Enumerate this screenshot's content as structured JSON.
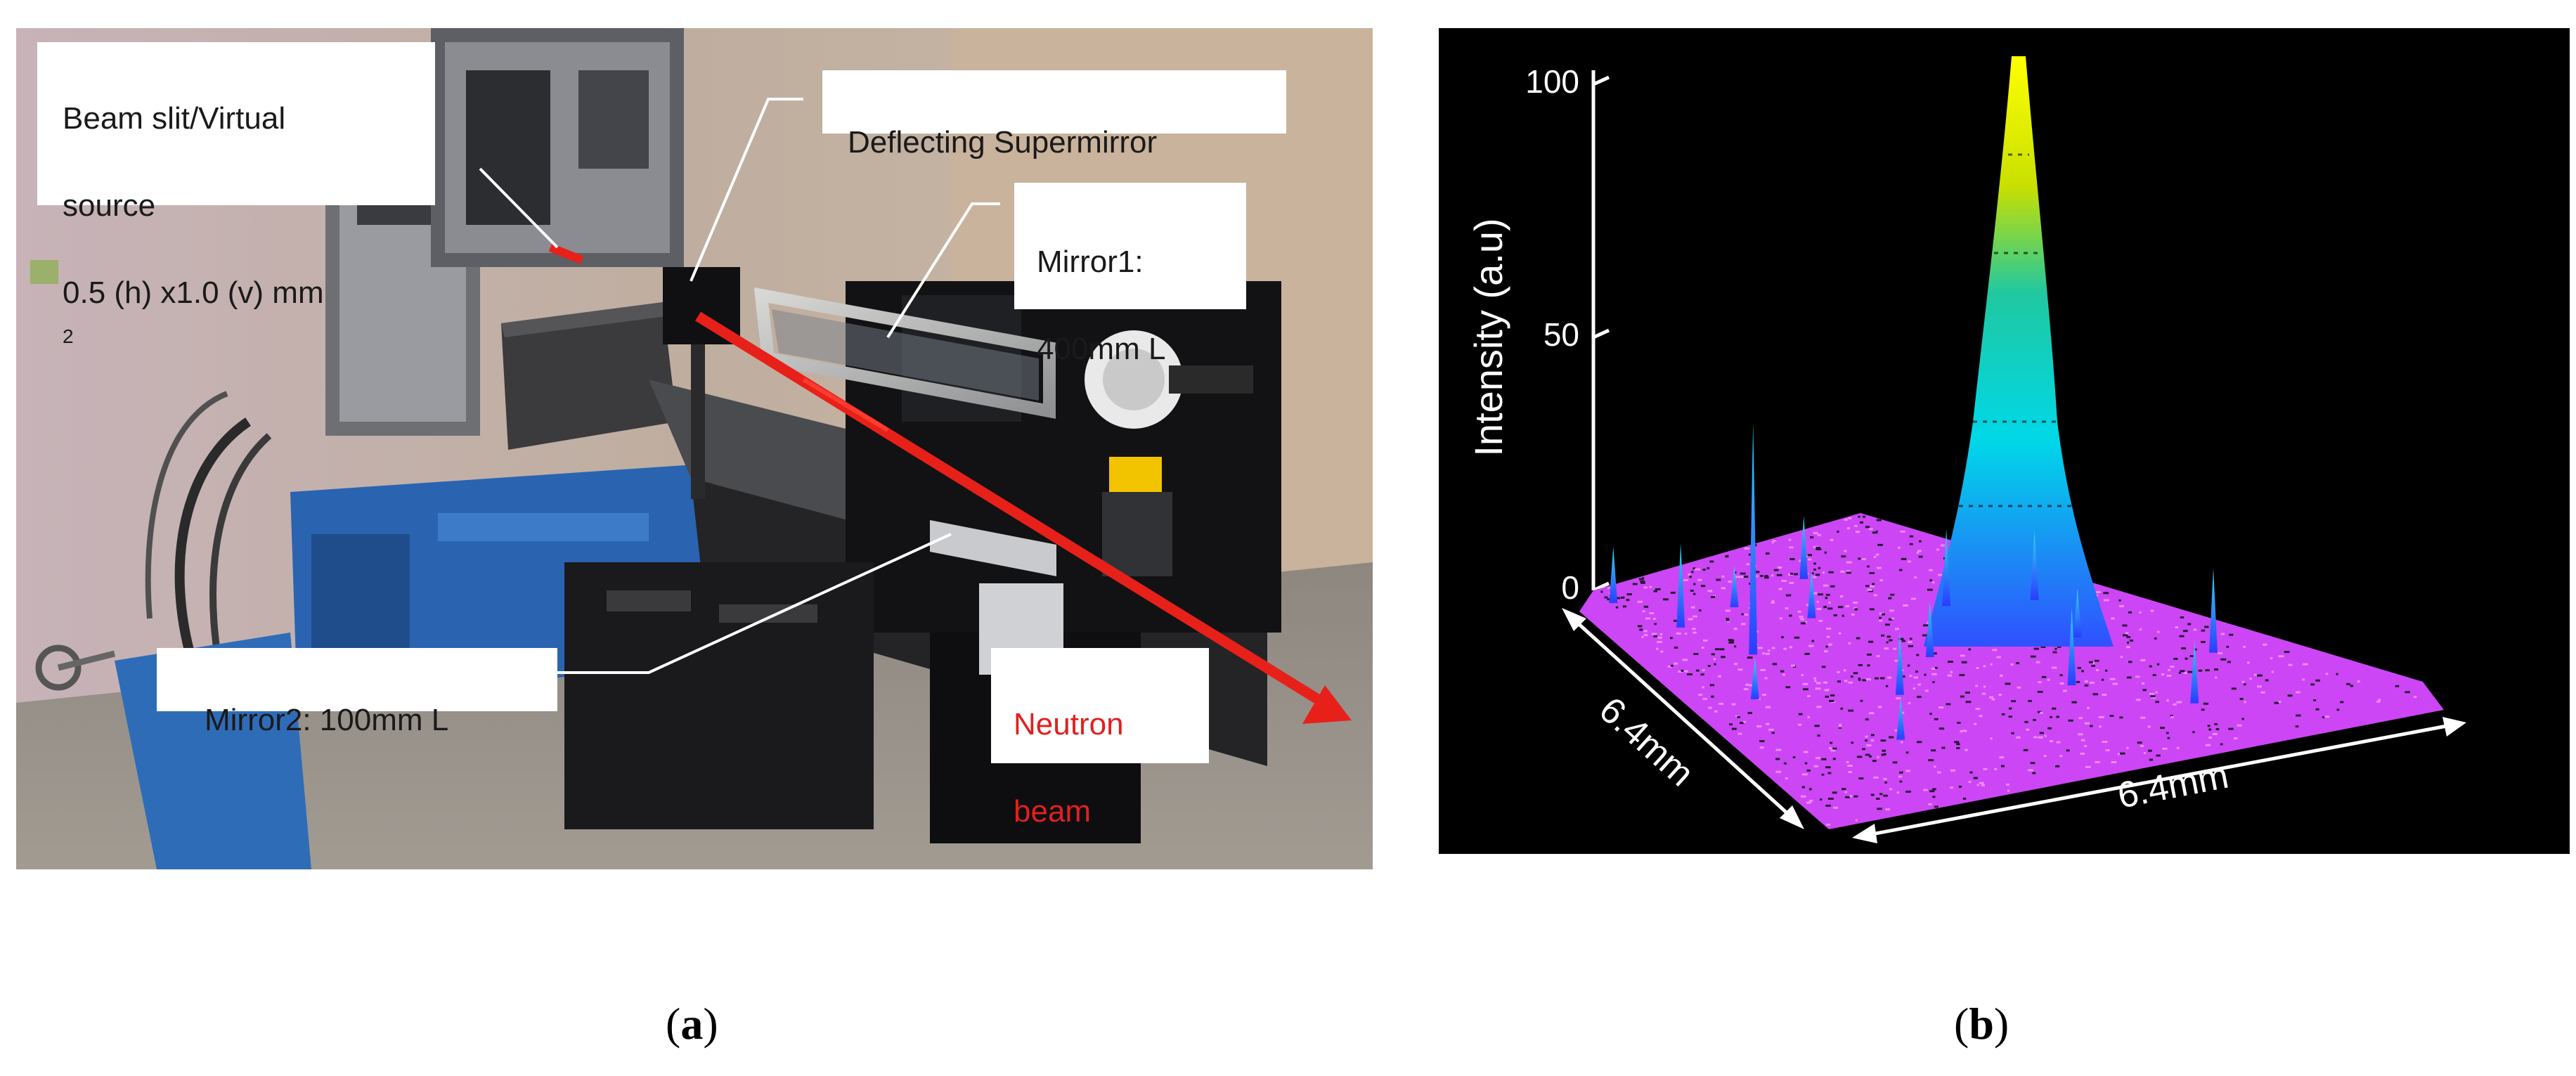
{
  "panel_a": {
    "labels": {
      "beam_slit_line1": "Beam slit/Virtual",
      "beam_slit_line2": "source",
      "beam_slit_line3": "0.5 (h) x1.0 (v) mm",
      "beam_slit_sup": "2",
      "deflecting": "Deflecting Supermirror",
      "mirror1_line1": "Mirror1:",
      "mirror1_line2": "400mm L",
      "mirror2": "Mirror2: 100mm L",
      "neutron_line1": "Neutron",
      "neutron_line2": "beam"
    },
    "colors": {
      "beam_arrow": "#e8201a",
      "neutron_text": "#e02020"
    }
  },
  "panel_b": {
    "axis_label": "Intensity (a.u)",
    "ticks": [
      "100",
      "50",
      "0"
    ],
    "dim_left": "6.4mm",
    "dim_right": "6.4mm",
    "colors": {
      "base": "#d24dff",
      "peak_top": "#ffff00",
      "peak_mid": "#00e0e0",
      "peak_low": "#3060ff"
    }
  },
  "captions": {
    "a": "a",
    "b": "b"
  }
}
